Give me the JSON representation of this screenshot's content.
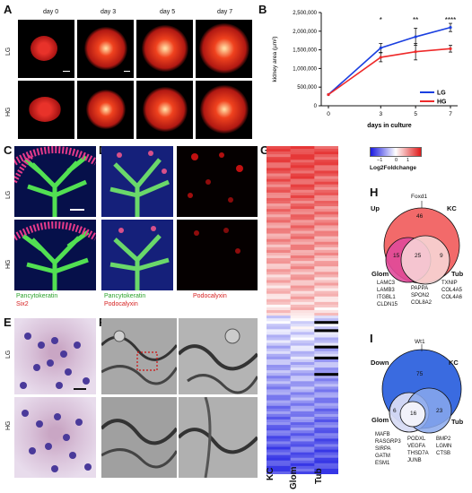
{
  "panels": {
    "A": {
      "label": "A",
      "days": [
        "day 0",
        "day 3",
        "day 5",
        "day 7"
      ],
      "rows": [
        "LG",
        "HG"
      ]
    },
    "B": {
      "label": "B"
    },
    "C": {
      "label": "C",
      "rows": [
        "LG",
        "HG"
      ],
      "stain1": "Pancytokeratin",
      "stain2": "Six2"
    },
    "D": {
      "label": "D",
      "stain_left_1": "Pancytokeratin",
      "stain_left_2": "Podocalyxin",
      "stain_right": "Podocalyxin"
    },
    "E": {
      "label": "E",
      "rows": [
        "LG",
        "HG"
      ]
    },
    "F": {
      "label": "F"
    },
    "G": {
      "label": "G",
      "columns": [
        "KC",
        "Glom",
        "Tub"
      ],
      "legend_title": "Log2Foldchange",
      "legend_ticks": [
        "−1",
        "0",
        "1"
      ]
    },
    "H": {
      "label": "H",
      "direction": "Up",
      "top_gene": "Foxd1",
      "sets": {
        "kc": "KC",
        "glom": "Glom",
        "tub": "Tub"
      },
      "counts": {
        "kc_only": "46",
        "glom_kc": "15",
        "all": "25",
        "tub_kc": "9"
      },
      "genes_glom": [
        "LAMC3",
        "LAMB3",
        "ITGBL1",
        "CLDN15"
      ],
      "genes_all": [
        "PAPPA",
        "SPON2",
        "COL8A2"
      ],
      "genes_tub": [
        "TXNIP",
        "COL4A5",
        "COL4A6"
      ]
    },
    "I": {
      "label": "I",
      "direction": "Down",
      "top_gene": "Wt1",
      "sets": {
        "kc": "KC",
        "glom": "Glom",
        "tub": "Tub"
      },
      "counts": {
        "kc_only": "75",
        "glom_kc": "6",
        "all": "16",
        "tub_kc": "23"
      },
      "genes_glom": [
        "MAFB",
        "RASGRP3",
        "SIRPA",
        "GATM",
        "ESM1"
      ],
      "genes_all": [
        "PODXL",
        "VEGFA",
        "THSD7A",
        "JUNB"
      ],
      "genes_tub": [
        "BMP2",
        "LGMN",
        "CTSB"
      ]
    }
  },
  "chart_data": {
    "type": "line",
    "x": [
      0,
      3,
      5,
      7
    ],
    "xlabel": "days in culture",
    "ylabel": "kidney area (µm²)",
    "ylim": [
      0,
      2500000
    ],
    "yticks": [
      "0",
      "500,000",
      "1,000,000",
      "1,500,000",
      "2,000,000",
      "2,500,000"
    ],
    "xticks": [
      "0",
      "3",
      "5",
      "7"
    ],
    "legend_placement": "bottom-right",
    "series": [
      {
        "name": "LG",
        "color": "#1a3fe0",
        "values": [
          300000,
          1550000,
          1850000,
          2100000
        ],
        "err": [
          0,
          120000,
          230000,
          110000
        ]
      },
      {
        "name": "HG",
        "color": "#ee2a2a",
        "values": [
          300000,
          1300000,
          1450000,
          1530000
        ],
        "err": [
          0,
          120000,
          220000,
          90000
        ]
      }
    ],
    "significance": [
      {
        "x": 3,
        "label": "*"
      },
      {
        "x": 5,
        "label": "**"
      },
      {
        "x": 7,
        "label": "****"
      }
    ]
  }
}
